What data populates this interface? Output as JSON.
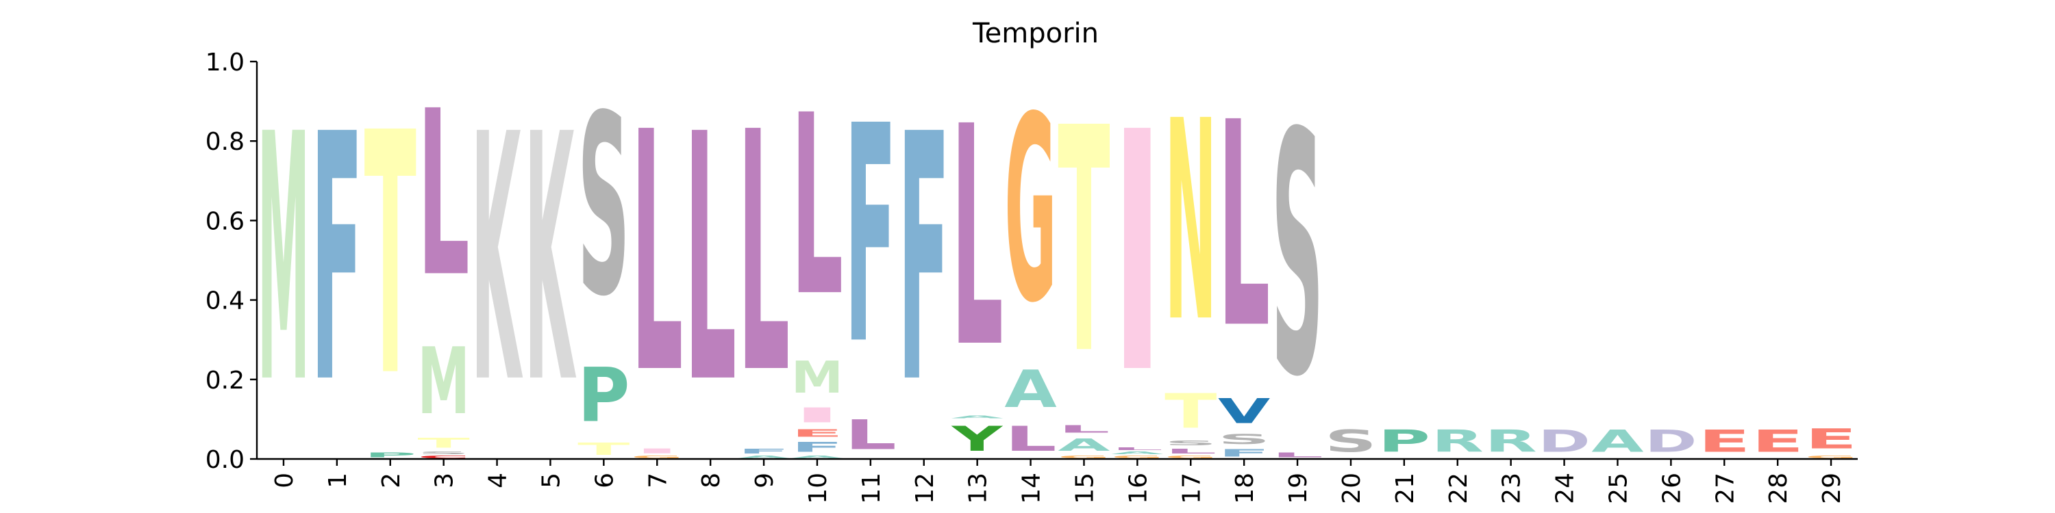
{
  "chart_data": {
    "type": "sequence-logo",
    "title": "Temporin",
    "xlabel": "",
    "ylabel": "",
    "ylim": [
      0,
      1
    ],
    "y_ticks": [
      "0.0",
      "0.2",
      "0.4",
      "0.6",
      "0.8",
      "1.0"
    ],
    "positions": [
      "0",
      "1",
      "2",
      "3",
      "4",
      "5",
      "6",
      "7",
      "8",
      "9",
      "10",
      "11",
      "12",
      "13",
      "14",
      "15",
      "16",
      "17",
      "18",
      "19",
      "20",
      "21",
      "22",
      "23",
      "24",
      "25",
      "26",
      "27",
      "28",
      "29"
    ],
    "colors": {
      "M": "#ccebc5",
      "F": "#80b1d3",
      "T": "#ffffb3",
      "L": "#bc80bd",
      "K": "#d9d9d9",
      "S": "#b3b3b3",
      "P": "#66c2a5",
      "G": "#fdb462",
      "A": "#8dd3c7",
      "I": "#fccde5",
      "N": "#ffed6f",
      "R": "#8dd3c7",
      "D": "#bebada",
      "E": "#fb8072",
      "Y": "#33a02c",
      "V": "#1f78b4",
      "C": "#e31a1c"
    },
    "stacks": [
      [
        [
          "M",
          1.0
        ]
      ],
      [
        [
          "F",
          1.0
        ]
      ],
      [
        [
          "P",
          0.02
        ],
        [
          "T",
          0.98
        ]
      ],
      [
        [
          "C",
          0.01
        ],
        [
          "S",
          0.01
        ],
        [
          "T",
          0.04
        ],
        [
          "M",
          0.27
        ],
        [
          "L",
          0.67
        ]
      ],
      [
        [
          "K",
          1.0
        ]
      ],
      [
        [
          "K",
          1.0
        ]
      ],
      [
        [
          "T",
          0.05
        ],
        [
          "P",
          0.22
        ],
        [
          "S",
          0.73
        ]
      ],
      [
        [
          "G",
          0.01
        ],
        [
          "I",
          0.02
        ],
        [
          "L",
          0.97
        ]
      ],
      [
        [
          "L",
          1.0
        ]
      ],
      [
        [
          "A",
          0.01
        ],
        [
          "F",
          0.02
        ],
        [
          "L",
          0.97
        ]
      ],
      [
        [
          "A",
          0.01
        ],
        [
          "F",
          0.04
        ],
        [
          "E",
          0.03
        ],
        [
          "I",
          0.06
        ],
        [
          "M",
          0.13
        ],
        [
          "L",
          0.73
        ]
      ],
      [
        [
          "L",
          0.12
        ],
        [
          "F",
          0.88
        ]
      ],
      [
        [
          "F",
          1.0
        ]
      ],
      [
        [
          "Y",
          0.1
        ],
        [
          "A",
          0.01
        ],
        [
          "L",
          0.89
        ]
      ],
      [
        [
          "L",
          0.1
        ],
        [
          "A",
          0.15
        ],
        [
          "G",
          0.75
        ]
      ],
      [
        [
          "G",
          0.01
        ],
        [
          "A",
          0.05
        ],
        [
          "L",
          0.03
        ],
        [
          "T",
          0.91
        ]
      ],
      [
        [
          "G",
          0.01
        ],
        [
          "A",
          0.01
        ],
        [
          "L",
          0.01
        ],
        [
          "I",
          0.97
        ]
      ],
      [
        [
          "G",
          0.01
        ],
        [
          "L",
          0.02
        ],
        [
          "S",
          0.02
        ],
        [
          "T",
          0.14
        ],
        [
          "N",
          0.81
        ]
      ],
      [
        [
          "F",
          0.03
        ],
        [
          "S",
          0.04
        ],
        [
          "V",
          0.1
        ],
        [
          "L",
          0.83
        ]
      ],
      [
        [
          "L",
          0.02
        ],
        [
          "S",
          0.98
        ]
      ],
      [
        [
          "S",
          0.09
        ]
      ],
      [
        [
          "P",
          0.09
        ]
      ],
      [
        [
          "R",
          0.09
        ]
      ],
      [
        [
          "R",
          0.09
        ]
      ],
      [
        [
          "D",
          0.09
        ]
      ],
      [
        [
          "A",
          0.09
        ]
      ],
      [
        [
          "D",
          0.09
        ]
      ],
      [
        [
          "E",
          0.09
        ]
      ],
      [
        [
          "E",
          0.09
        ]
      ],
      [
        [
          "G",
          0.01
        ],
        [
          "E",
          0.08
        ]
      ]
    ]
  }
}
